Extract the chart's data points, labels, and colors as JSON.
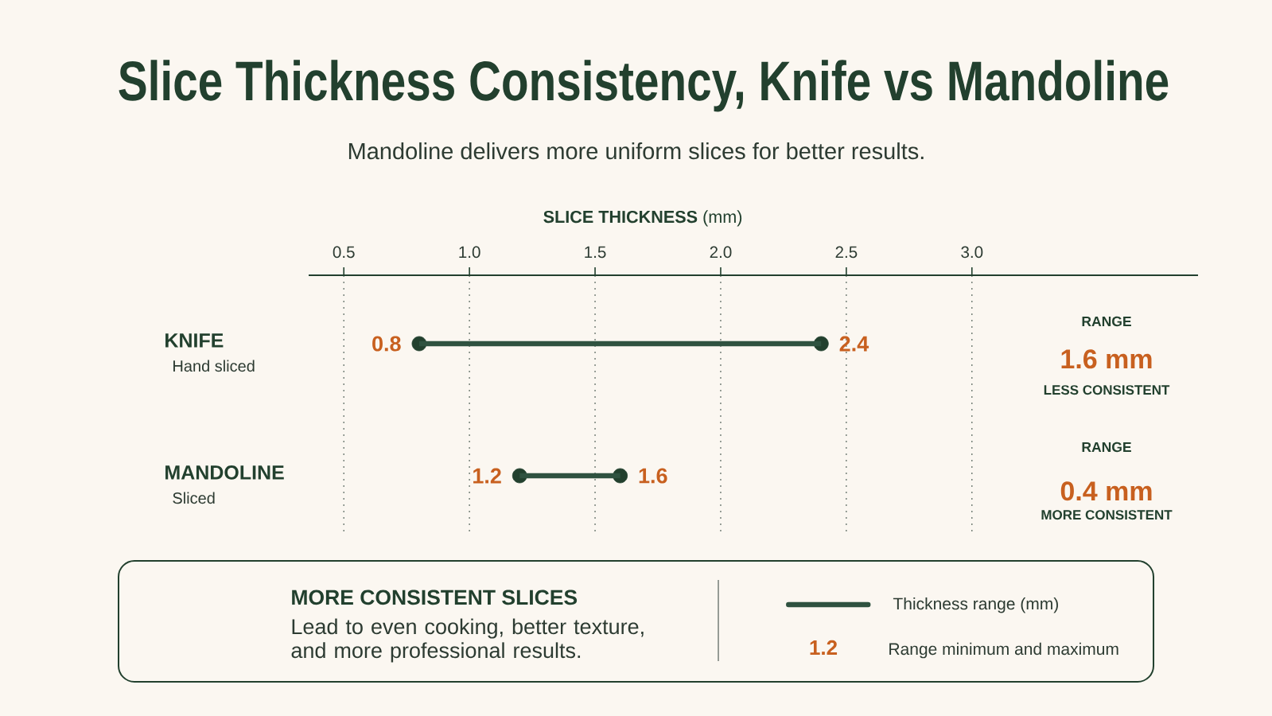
{
  "chart_data": {
    "type": "bar",
    "orientation": "horizontal",
    "title": "Slice Thickness Consistency, Knife vs Mandoline",
    "subtitle": "Mandoline delivers more uniform slices for better results.",
    "xlabel": "**SLICE THICKNESS** (mm)",
    "categories": [
      "KNIFE",
      "MANDOLINE"
    ],
    "series": [
      {
        "name": "Thickness range (mm)",
        "color": "#2f5240",
        "base": [
          0.8,
          1.2
        ],
        "values": [
          1.6,
          0.4
        ],
        "value_labels": [
          "1.6 mm",
          "0.4 mm"
        ]
      },
      {
        "type": "scatter",
        "color": "#22402e",
        "x": [
          "KNIFE",
          "KNIFE",
          "MANDOLINE",
          "MANDOLINE"
        ],
        "values": [
          0.8,
          2.4,
          1.2,
          1.6
        ],
        "value_labels": [
          "0.8",
          "2.4",
          "1.2",
          "1.6"
        ]
      }
    ],
    "xlim": [
      0.36,
      3.9
    ],
    "xticks": [
      {
        "value": 0.5,
        "label": "0.5"
      },
      {
        "value": 1.0,
        "label": "1.0"
      },
      {
        "value": 1.5,
        "label": "1.5"
      },
      {
        "value": 2.0,
        "label": "2.0"
      },
      {
        "value": 2.5,
        "label": "2.5"
      },
      {
        "value": 3.0,
        "label": "3.0"
      }
    ],
    "grid": "x",
    "legend": "bottom",
    "marker": "circle",
    "annotations": [
      "Hand sliced",
      "Sliced",
      "RANGE",
      "LESS CONSISTENT",
      "RANGE",
      "MORE CONSISTENT",
      "MORE CONSISTENT SLICES",
      "Lead to even cooking, better texture, and more professional results.",
      "1.2",
      "Range minimum and maximum"
    ]
  }
}
